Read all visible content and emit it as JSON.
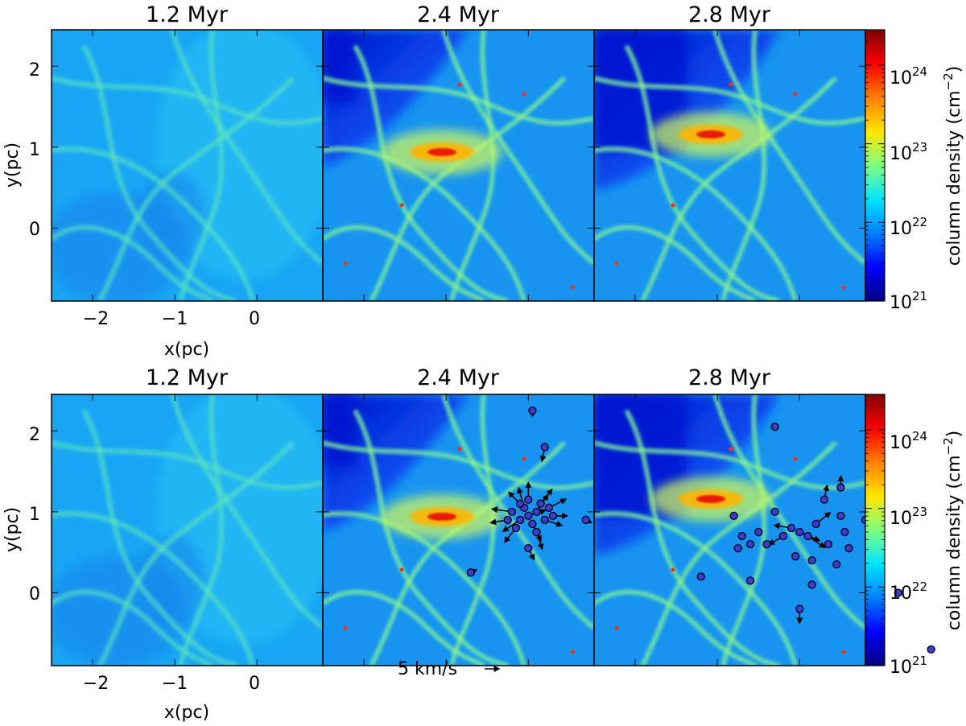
{
  "chart_data": [
    {
      "type": "heatmap",
      "title": "1.2 Myr",
      "xlabel": "x(pc)",
      "ylabel": "y(pc)",
      "xlim": [
        -2.5,
        0.8
      ],
      "ylim": [
        -0.9,
        2.45
      ],
      "xticks": [
        "−2",
        "−1",
        "0"
      ],
      "yticks": [
        "0",
        "1",
        "2"
      ],
      "colorbar": {
        "label": "column density (cm⁻²)",
        "range": [
          1e+21,
          3e+24
        ],
        "scale": "log",
        "ticks": [
          "10²¹",
          "10²²",
          "10²³",
          "10²⁴"
        ],
        "colormap": "jet"
      },
      "sinks": []
    },
    {
      "type": "heatmap",
      "title": "2.4 Myr",
      "xlim": [
        -2.5,
        0.8
      ],
      "ylim": [
        -0.9,
        2.45
      ],
      "sinks": []
    },
    {
      "type": "heatmap",
      "title": "2.8 Myr",
      "xlim": [
        -2.5,
        0.8
      ],
      "ylim": [
        -0.9,
        2.45
      ],
      "sinks": []
    },
    {
      "type": "heatmap",
      "title": "1.2 Myr",
      "xlabel": "x(pc)",
      "ylabel": "y(pc)",
      "xlim": [
        -2.5,
        0.8
      ],
      "ylim": [
        -0.9,
        2.45
      ],
      "xticks": [
        "−2",
        "−1",
        "0"
      ],
      "yticks": [
        "0",
        "1",
        "2"
      ],
      "sinks": []
    },
    {
      "type": "scatter",
      "title": "2.4 Myr",
      "xlim": [
        -2.5,
        0.8
      ],
      "ylim": [
        -0.9,
        2.45
      ],
      "velocity_key": "5 km/s",
      "sinks": [
        {
          "x": 0.0,
          "y": 0.95,
          "vx": 0.3,
          "vy": 0.1
        },
        {
          "x": -0.1,
          "y": 0.9,
          "vx": -0.3,
          "vy": -0.2
        },
        {
          "x": 0.1,
          "y": 1.0,
          "vx": 0.2,
          "vy": 0.3
        },
        {
          "x": -0.05,
          "y": 1.05,
          "vx": -0.1,
          "vy": 0.35
        },
        {
          "x": 0.05,
          "y": 0.85,
          "vx": 0.15,
          "vy": -0.3
        },
        {
          "x": -0.2,
          "y": 1.0,
          "vx": -0.35,
          "vy": 0.05
        },
        {
          "x": 0.2,
          "y": 0.9,
          "vx": 0.3,
          "vy": -0.1
        },
        {
          "x": 0.15,
          "y": 1.1,
          "vx": 0.2,
          "vy": 0.25
        },
        {
          "x": -0.15,
          "y": 0.8,
          "vx": -0.2,
          "vy": -0.25
        },
        {
          "x": 0.0,
          "y": 1.15,
          "vx": 0.0,
          "vy": 0.3
        },
        {
          "x": 0.1,
          "y": 0.75,
          "vx": 0.1,
          "vy": -0.3
        },
        {
          "x": -0.25,
          "y": 0.9,
          "vx": -0.3,
          "vy": -0.05
        },
        {
          "x": 0.25,
          "y": 1.05,
          "vx": 0.3,
          "vy": 0.15
        },
        {
          "x": -0.1,
          "y": 1.1,
          "vx": -0.2,
          "vy": 0.2
        },
        {
          "x": 0.3,
          "y": 0.95,
          "vx": 0.25,
          "vy": 0.0
        },
        {
          "x": 0.0,
          "y": 0.55,
          "vx": 0.1,
          "vy": -0.2
        },
        {
          "x": 0.7,
          "y": 0.9,
          "vx": 0.1,
          "vy": -0.05
        },
        {
          "x": 0.2,
          "y": 1.8,
          "vx": -0.05,
          "vy": -0.25
        },
        {
          "x": 0.05,
          "y": 2.25,
          "vx": 0.0,
          "vy": -0.1
        },
        {
          "x": -0.7,
          "y": 0.25,
          "vx": 0.1,
          "vy": 0.05
        }
      ]
    },
    {
      "type": "scatter",
      "title": "2.8 Myr",
      "xlim": [
        -2.5,
        0.8
      ],
      "ylim": [
        -0.9,
        2.45
      ],
      "colorbar": {
        "label": "column density (cm⁻²)",
        "range": [
          1e+21,
          3e+24
        ],
        "scale": "log",
        "ticks": [
          "10²¹",
          "10²²",
          "10²³",
          "10²⁴"
        ],
        "colormap": "jet"
      },
      "sinks": [
        {
          "x": 0.0,
          "y": 0.75,
          "vx": 0.35,
          "vy": -0.15
        },
        {
          "x": -0.1,
          "y": 0.8,
          "vx": -0.3,
          "vy": 0.05
        },
        {
          "x": 0.1,
          "y": 0.7,
          "vx": 0.3,
          "vy": -0.2
        },
        {
          "x": -0.2,
          "y": 0.7,
          "vx": -0.25,
          "vy": -0.15
        },
        {
          "x": 0.2,
          "y": 0.85,
          "vx": 0.25,
          "vy": 0.2
        },
        {
          "x": -0.5,
          "y": 0.75,
          "vx": -0.05,
          "vy": 0.0
        },
        {
          "x": -0.7,
          "y": 0.7,
          "vx": -0.05,
          "vy": 0.0
        },
        {
          "x": -0.8,
          "y": 0.95,
          "vx": 0.0,
          "vy": 0.0
        },
        {
          "x": -0.75,
          "y": 0.55,
          "vx": 0.0,
          "vy": 0.0
        },
        {
          "x": -0.6,
          "y": 0.6,
          "vx": 0.0,
          "vy": 0.0
        },
        {
          "x": -0.4,
          "y": 0.6,
          "vx": 0.0,
          "vy": 0.0
        },
        {
          "x": -0.3,
          "y": 1.0,
          "vx": 0.0,
          "vy": 0.0
        },
        {
          "x": 0.3,
          "y": 1.15,
          "vx": 0.05,
          "vy": 0.25
        },
        {
          "x": 0.5,
          "y": 1.3,
          "vx": 0.0,
          "vy": 0.2
        },
        {
          "x": 0.5,
          "y": 0.95,
          "vx": 0.0,
          "vy": 0.0
        },
        {
          "x": 0.55,
          "y": 0.75,
          "vx": 0.0,
          "vy": 0.0
        },
        {
          "x": 0.6,
          "y": 0.55,
          "vx": 0.0,
          "vy": 0.0
        },
        {
          "x": 0.8,
          "y": 0.9,
          "vx": 0.0,
          "vy": 0.0
        },
        {
          "x": 0.35,
          "y": 0.6,
          "vx": 0.0,
          "vy": 0.0
        },
        {
          "x": 0.15,
          "y": 0.4,
          "vx": 0.0,
          "vy": 0.0
        },
        {
          "x": -0.05,
          "y": 0.45,
          "vx": 0.0,
          "vy": 0.0
        },
        {
          "x": 0.45,
          "y": 0.35,
          "vx": 0.0,
          "vy": 0.0
        },
        {
          "x": 0.15,
          "y": 0.1,
          "vx": 0.0,
          "vy": 0.0
        },
        {
          "x": -0.6,
          "y": 0.15,
          "vx": 0.0,
          "vy": 0.0
        },
        {
          "x": -1.2,
          "y": 0.2,
          "vx": 0.0,
          "vy": 0.0
        },
        {
          "x": -0.3,
          "y": 2.05,
          "vx": 0.0,
          "vy": 0.0
        },
        {
          "x": 0.0,
          "y": -0.2,
          "vx": 0.0,
          "vy": -0.25
        },
        {
          "x": 1.2,
          "y": 0.0,
          "vx": 0.0,
          "vy": 0.0
        },
        {
          "x": 1.6,
          "y": -0.7,
          "vx": 0.0,
          "vy": 0.0
        }
      ]
    }
  ],
  "figure": {
    "panel_titles": [
      "1.2 Myr",
      "2.4 Myr",
      "2.8 Myr",
      "1.2 Myr",
      "2.4 Myr",
      "2.8 Myr"
    ],
    "xlabel": "x(pc)",
    "ylabel": "y(pc)",
    "xticks": [
      "−2",
      "−1",
      "0"
    ],
    "yticks": [
      "0",
      "1",
      "2"
    ],
    "colorbar_label": "column density (cm",
    "colorbar_label_exp": "−2",
    "colorbar_label_end": ")",
    "colorbar_ticks": [
      "10",
      "10",
      "10",
      "10"
    ],
    "colorbar_exps": [
      "24",
      "23",
      "22",
      "21"
    ],
    "velocity_key": "5 km/s",
    "colormap_stops": [
      "#00007f",
      "#0000ff",
      "#007fff",
      "#00e5ff",
      "#7fff7f",
      "#ffe500",
      "#ff7f00",
      "#ff0000",
      "#7f0000"
    ]
  }
}
